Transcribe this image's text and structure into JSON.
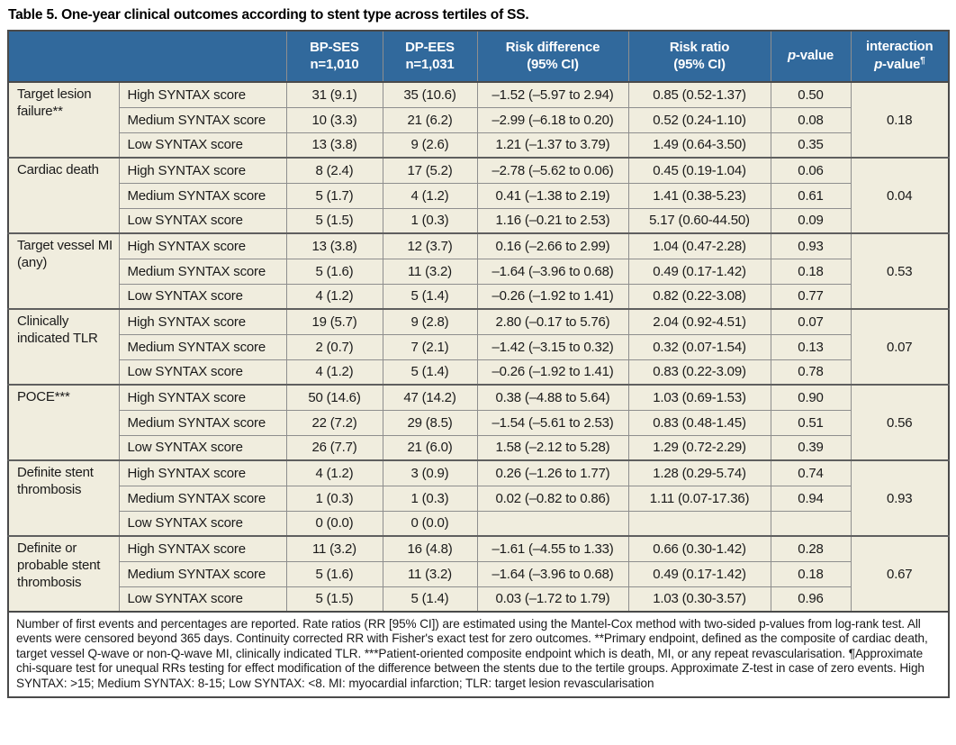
{
  "title": "Table 5. One-year clinical outcomes according to stent type across tertiles of SS.",
  "colors": {
    "header_bg": "#31699c",
    "header_text": "#ffffff",
    "row_bg": "#f0edde",
    "border_dark": "#4a4a4a",
    "border_light": "#8e8e8e"
  },
  "header": {
    "bpses_line1": "BP-SES",
    "bpses_line2": "n=1,010",
    "dpees_line1": "DP-EES",
    "dpees_line2": "n=1,031",
    "riskdiff_line1": "Risk difference",
    "riskdiff_line2": "(95% CI)",
    "riskratio_line1": "Risk ratio",
    "riskratio_line2": "(95% CI)",
    "p_italic": "p",
    "p_rest": "-value",
    "interaction_line1": "interaction",
    "interaction_p_italic": "p",
    "interaction_rest": "-value",
    "interaction_sup": "¶"
  },
  "groups": [
    {
      "outcome": "Target lesion failure**",
      "interaction_p": "0.18",
      "rows": [
        {
          "syntax": "High SYNTAX score",
          "bpses": "31 (9.1)",
          "dpees": "35 (10.6)",
          "riskdiff": "–1.52 (–5.97 to 2.94)",
          "riskratio": "0.85 (0.52-1.37)",
          "p": "0.50"
        },
        {
          "syntax": "Medium SYNTAX score",
          "bpses": "10 (3.3)",
          "dpees": "21 (6.2)",
          "riskdiff": "–2.99 (–6.18 to 0.20)",
          "riskratio": "0.52 (0.24-1.10)",
          "p": "0.08"
        },
        {
          "syntax": "Low SYNTAX score",
          "bpses": "13 (3.8)",
          "dpees": "9 (2.6)",
          "riskdiff": "1.21 (–1.37 to 3.79)",
          "riskratio": "1.49 (0.64-3.50)",
          "p": "0.35"
        }
      ]
    },
    {
      "outcome": "Cardiac death",
      "interaction_p": "0.04",
      "rows": [
        {
          "syntax": "High SYNTAX score",
          "bpses": "8 (2.4)",
          "dpees": "17 (5.2)",
          "riskdiff": "–2.78 (–5.62 to 0.06)",
          "riskratio": "0.45 (0.19-1.04)",
          "p": "0.06"
        },
        {
          "syntax": "Medium SYNTAX score",
          "bpses": "5 (1.7)",
          "dpees": "4 (1.2)",
          "riskdiff": "0.41 (–1.38 to 2.19)",
          "riskratio": "1.41 (0.38-5.23)",
          "p": "0.61"
        },
        {
          "syntax": "Low SYNTAX score",
          "bpses": "5 (1.5)",
          "dpees": "1 (0.3)",
          "riskdiff": "1.16 (–0.21 to 2.53)",
          "riskratio": "5.17 (0.60-44.50)",
          "p": "0.09"
        }
      ]
    },
    {
      "outcome": "Target vessel MI (any)",
      "interaction_p": "0.53",
      "rows": [
        {
          "syntax": "High SYNTAX score",
          "bpses": "13 (3.8)",
          "dpees": "12 (3.7)",
          "riskdiff": "0.16 (–2.66 to 2.99)",
          "riskratio": "1.04 (0.47-2.28)",
          "p": "0.93"
        },
        {
          "syntax": "Medium SYNTAX score",
          "bpses": "5 (1.6)",
          "dpees": "11 (3.2)",
          "riskdiff": "–1.64 (–3.96 to 0.68)",
          "riskratio": "0.49 (0.17-1.42)",
          "p": "0.18"
        },
        {
          "syntax": "Low SYNTAX score",
          "bpses": "4 (1.2)",
          "dpees": "5 (1.4)",
          "riskdiff": "–0.26 (–1.92 to 1.41)",
          "riskratio": "0.82 (0.22-3.08)",
          "p": "0.77"
        }
      ]
    },
    {
      "outcome": "Clinically indicated TLR",
      "interaction_p": "0.07",
      "rows": [
        {
          "syntax": "High SYNTAX score",
          "bpses": "19 (5.7)",
          "dpees": "9 (2.8)",
          "riskdiff": "2.80 (–0.17 to 5.76)",
          "riskratio": "2.04 (0.92-4.51)",
          "p": "0.07"
        },
        {
          "syntax": "Medium SYNTAX score",
          "bpses": "2 (0.7)",
          "dpees": "7 (2.1)",
          "riskdiff": "–1.42 (–3.15 to 0.32)",
          "riskratio": "0.32 (0.07-1.54)",
          "p": "0.13"
        },
        {
          "syntax": "Low SYNTAX score",
          "bpses": "4 (1.2)",
          "dpees": "5 (1.4)",
          "riskdiff": "–0.26 (–1.92 to 1.41)",
          "riskratio": "0.83 (0.22-3.09)",
          "p": "0.78"
        }
      ]
    },
    {
      "outcome": "POCE***",
      "interaction_p": "0.56",
      "rows": [
        {
          "syntax": "High SYNTAX score",
          "bpses": "50 (14.6)",
          "dpees": "47 (14.2)",
          "riskdiff": "0.38 (–4.88 to 5.64)",
          "riskratio": "1.03 (0.69-1.53)",
          "p": "0.90"
        },
        {
          "syntax": "Medium SYNTAX score",
          "bpses": "22 (7.2)",
          "dpees": "29 (8.5)",
          "riskdiff": "–1.54 (–5.61 to 2.53)",
          "riskratio": "0.83 (0.48-1.45)",
          "p": "0.51"
        },
        {
          "syntax": "Low SYNTAX score",
          "bpses": "26 (7.7)",
          "dpees": "21 (6.0)",
          "riskdiff": "1.58 (–2.12 to 5.28)",
          "riskratio": "1.29 (0.72-2.29)",
          "p": "0.39"
        }
      ]
    },
    {
      "outcome": "Definite stent thrombosis",
      "interaction_p": "0.93",
      "rows": [
        {
          "syntax": "High SYNTAX score",
          "bpses": "4 (1.2)",
          "dpees": "3 (0.9)",
          "riskdiff": "0.26 (–1.26 to 1.77)",
          "riskratio": "1.28 (0.29-5.74)",
          "p": "0.74"
        },
        {
          "syntax": "Medium SYNTAX score",
          "bpses": "1 (0.3)",
          "dpees": "1 (0.3)",
          "riskdiff": "0.02 (–0.82 to 0.86)",
          "riskratio": "1.11 (0.07-17.36)",
          "p": "0.94"
        },
        {
          "syntax": "Low SYNTAX score",
          "bpses": "0 (0.0)",
          "dpees": "0 (0.0)",
          "riskdiff": "",
          "riskratio": "",
          "p": ""
        }
      ]
    },
    {
      "outcome": "Definite or probable stent thrombosis",
      "interaction_p": "0.67",
      "rows": [
        {
          "syntax": "High SYNTAX score",
          "bpses": "11 (3.2)",
          "dpees": "16 (4.8)",
          "riskdiff": "–1.61 (–4.55 to 1.33)",
          "riskratio": "0.66 (0.30-1.42)",
          "p": "0.28"
        },
        {
          "syntax": "Medium SYNTAX score",
          "bpses": "5 (1.6)",
          "dpees": "11 (3.2)",
          "riskdiff": "–1.64 (–3.96 to 0.68)",
          "riskratio": "0.49 (0.17-1.42)",
          "p": "0.18"
        },
        {
          "syntax": "Low SYNTAX score",
          "bpses": "5 (1.5)",
          "dpees": "5 (1.4)",
          "riskdiff": "0.03 (–1.72 to 1.79)",
          "riskratio": "1.03 (0.30-3.57)",
          "p": "0.96"
        }
      ]
    }
  ],
  "footnote": "Number of first events and percentages are reported. Rate ratios (RR [95% CI]) are estimated using the Mantel-Cox method with two-sided p-values from log-rank test. All events were censored beyond 365 days. Continuity corrected RR with Fisher's exact test for zero outcomes. **Primary endpoint, defined as the composite of cardiac death, target vessel Q-wave or non-Q-wave MI, clinically indicated TLR. ***Patient-oriented composite endpoint which is death, MI, or any repeat revascularisation. ¶Approximate chi-square test for unequal RRs testing for effect modification of the difference between the stents due to the tertile groups. Approximate Z-test in case of zero events. High SYNTAX: >15; Medium SYNTAX: 8-15; Low SYNTAX: <8. MI: myocardial infarction; TLR: target lesion revascularisation"
}
